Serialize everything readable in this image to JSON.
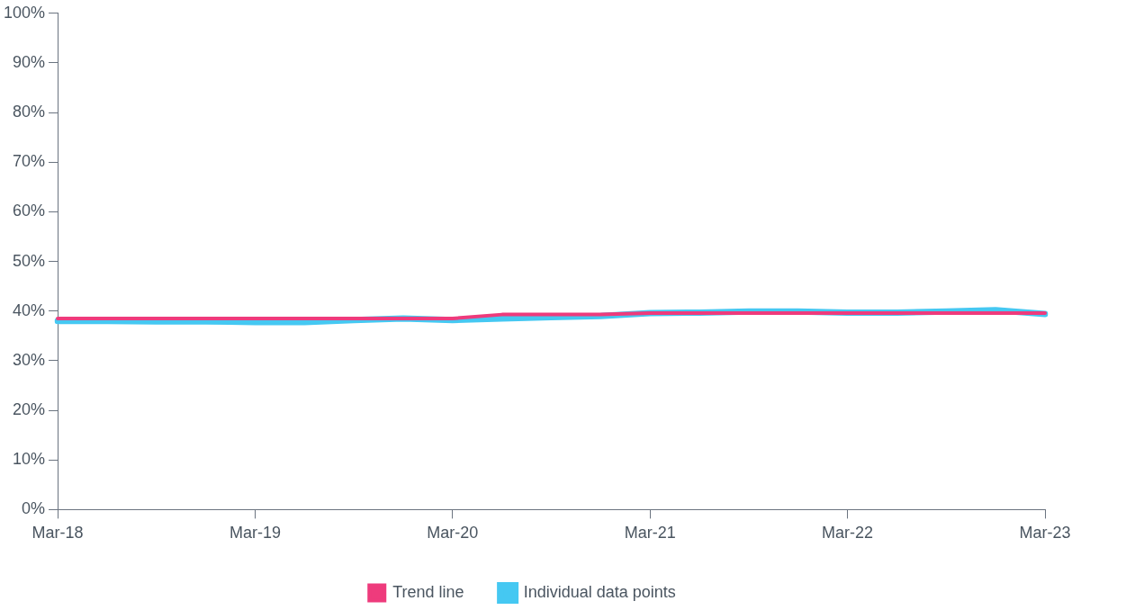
{
  "chart_data": {
    "type": "line",
    "categories": [
      "Mar-18",
      null,
      null,
      null,
      "Mar-19",
      null,
      null,
      null,
      "Mar-20",
      null,
      null,
      null,
      "Mar-21",
      null,
      null,
      null,
      "Mar-22",
      null,
      null,
      null,
      "Mar-23"
    ],
    "series": [
      {
        "name": "Trend line",
        "color": "#ee3b7c",
        "values": [
          38.5,
          38.5,
          38.5,
          38.5,
          38.5,
          38.5,
          38.5,
          38.5,
          38.5,
          39.3,
          39.3,
          39.3,
          39.6,
          39.6,
          39.6,
          39.6,
          39.6,
          39.6,
          39.6,
          39.6,
          39.6
        ]
      },
      {
        "name": "Individual data points",
        "color": "#45c8f2",
        "values": [
          38.0,
          38.0,
          37.9,
          37.9,
          37.8,
          37.8,
          38.2,
          38.5,
          38.2,
          38.5,
          38.8,
          39.0,
          39.6,
          39.7,
          39.9,
          39.9,
          39.7,
          39.7,
          39.9,
          40.2,
          39.4
        ]
      }
    ],
    "ylim": [
      0,
      100
    ],
    "yticks": [
      {
        "value": 0,
        "label": "0%"
      },
      {
        "value": 10,
        "label": "10%"
      },
      {
        "value": 20,
        "label": "20%"
      },
      {
        "value": 30,
        "label": "30%"
      },
      {
        "value": 40,
        "label": "40%"
      },
      {
        "value": 50,
        "label": "50%"
      },
      {
        "value": 60,
        "label": "60%"
      },
      {
        "value": 70,
        "label": "70%"
      },
      {
        "value": 80,
        "label": "80%"
      },
      {
        "value": 90,
        "label": "90%"
      },
      {
        "value": 100,
        "label": "100%"
      }
    ],
    "grid": false,
    "legend": "bottom",
    "marker": "none",
    "line_style": "solid"
  }
}
